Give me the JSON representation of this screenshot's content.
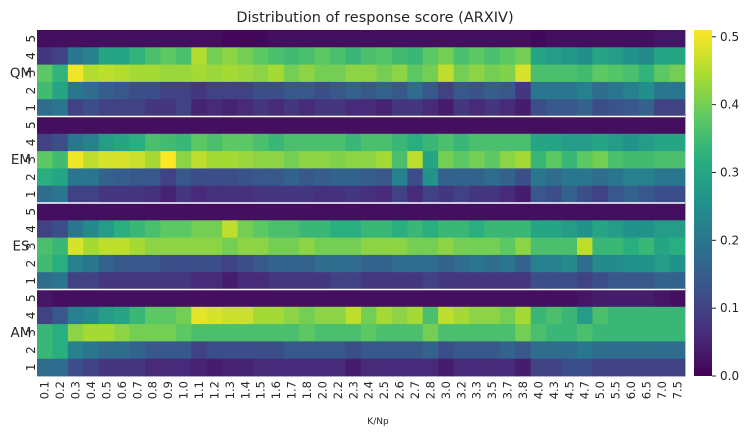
{
  "chart_data": {
    "type": "heatmap",
    "title": "Distribution of response score (ARXIV)",
    "xlabel": "K/Np",
    "ylabel": "",
    "x_categories": [
      "0.1",
      "0.2",
      "0.3",
      "0.4",
      "0.5",
      "0.6",
      "0.7",
      "0.8",
      "0.9",
      "1.0",
      "1.1",
      "1.2",
      "1.3",
      "1.4",
      "1.5",
      "1.6",
      "1.7",
      "1.8",
      "2.0",
      "2.2",
      "2.3",
      "2.4",
      "2.5",
      "2.6",
      "2.7",
      "2.8",
      "3.0",
      "3.2",
      "3.3",
      "3.5",
      "3.7",
      "3.8",
      "4.0",
      "4.3",
      "4.5",
      "4.7",
      "5.0",
      "5.5",
      "6.0",
      "6.5",
      "7.0",
      "7.5"
    ],
    "groups": [
      "QM",
      "EM",
      "ES",
      "AM"
    ],
    "scores": [
      "5",
      "4",
      "3",
      "2",
      "1"
    ],
    "colorbar": {
      "vmin": 0.0,
      "vmax": 0.51,
      "ticks": [
        "0.0",
        "0.1",
        "0.2",
        "0.3",
        "0.4",
        "0.5"
      ],
      "colormap": "viridis"
    },
    "rows": [
      {
        "group": "QM",
        "score": "5",
        "values": [
          0.02,
          0.02,
          0.02,
          0.02,
          0.02,
          0.02,
          0.02,
          0.02,
          0.02,
          0.02,
          0.02,
          0.02,
          0.01,
          0.01,
          0.01,
          0.02,
          0.02,
          0.02,
          0.02,
          0.02,
          0.02,
          0.02,
          0.02,
          0.02,
          0.02,
          0.02,
          0.02,
          0.02,
          0.02,
          0.02,
          0.02,
          0.02,
          0.01,
          0.02,
          0.02,
          0.02,
          0.02,
          0.02,
          0.02,
          0.02,
          0.03,
          0.03
        ]
      },
      {
        "group": "QM",
        "score": "4",
        "values": [
          0.08,
          0.1,
          0.2,
          0.22,
          0.3,
          0.3,
          0.33,
          0.36,
          0.38,
          0.36,
          0.45,
          0.4,
          0.42,
          0.4,
          0.38,
          0.36,
          0.35,
          0.36,
          0.38,
          0.36,
          0.34,
          0.36,
          0.37,
          0.35,
          0.34,
          0.38,
          0.4,
          0.36,
          0.38,
          0.36,
          0.38,
          0.4,
          0.3,
          0.28,
          0.27,
          0.25,
          0.3,
          0.28,
          0.26,
          0.24,
          0.3,
          0.3
        ]
      },
      {
        "group": "QM",
        "score": "3",
        "values": [
          0.38,
          0.33,
          0.5,
          0.45,
          0.46,
          0.45,
          0.44,
          0.44,
          0.43,
          0.43,
          0.44,
          0.43,
          0.44,
          0.43,
          0.42,
          0.44,
          0.4,
          0.42,
          0.4,
          0.4,
          0.42,
          0.42,
          0.4,
          0.42,
          0.38,
          0.4,
          0.46,
          0.4,
          0.42,
          0.4,
          0.41,
          0.48,
          0.36,
          0.36,
          0.36,
          0.35,
          0.38,
          0.37,
          0.36,
          0.33,
          0.38,
          0.4
        ]
      },
      {
        "group": "QM",
        "score": "2",
        "values": [
          0.35,
          0.3,
          0.2,
          0.18,
          0.15,
          0.14,
          0.12,
          0.12,
          0.1,
          0.1,
          0.08,
          0.1,
          0.1,
          0.1,
          0.12,
          0.12,
          0.14,
          0.14,
          0.12,
          0.14,
          0.16,
          0.14,
          0.16,
          0.14,
          0.18,
          0.14,
          0.1,
          0.14,
          0.13,
          0.15,
          0.14,
          0.08,
          0.2,
          0.2,
          0.2,
          0.22,
          0.18,
          0.2,
          0.22,
          0.25,
          0.2,
          0.2
        ]
      },
      {
        "group": "QM",
        "score": "1",
        "values": [
          0.18,
          0.2,
          0.1,
          0.12,
          0.1,
          0.1,
          0.1,
          0.08,
          0.08,
          0.1,
          0.05,
          0.06,
          0.05,
          0.06,
          0.08,
          0.06,
          0.08,
          0.06,
          0.08,
          0.08,
          0.06,
          0.06,
          0.05,
          0.08,
          0.08,
          0.06,
          0.04,
          0.08,
          0.06,
          0.08,
          0.06,
          0.04,
          0.12,
          0.14,
          0.14,
          0.16,
          0.12,
          0.13,
          0.14,
          0.16,
          0.1,
          0.1
        ]
      },
      {
        "group": "EM",
        "score": "5",
        "values": [
          0.02,
          0.02,
          0.02,
          0.02,
          0.02,
          0.02,
          0.02,
          0.02,
          0.02,
          0.02,
          0.02,
          0.02,
          0.02,
          0.02,
          0.02,
          0.02,
          0.02,
          0.02,
          0.02,
          0.02,
          0.02,
          0.02,
          0.02,
          0.02,
          0.02,
          0.02,
          0.02,
          0.02,
          0.02,
          0.02,
          0.02,
          0.02,
          0.02,
          0.02,
          0.02,
          0.02,
          0.02,
          0.02,
          0.02,
          0.02,
          0.02,
          0.02
        ]
      },
      {
        "group": "EM",
        "score": "4",
        "values": [
          0.1,
          0.12,
          0.2,
          0.22,
          0.28,
          0.3,
          0.32,
          0.36,
          0.35,
          0.34,
          0.38,
          0.36,
          0.38,
          0.38,
          0.36,
          0.34,
          0.36,
          0.36,
          0.36,
          0.36,
          0.34,
          0.36,
          0.36,
          0.34,
          0.32,
          0.34,
          0.36,
          0.34,
          0.36,
          0.36,
          0.36,
          0.36,
          0.3,
          0.3,
          0.28,
          0.28,
          0.3,
          0.28,
          0.26,
          0.28,
          0.3,
          0.3
        ]
      },
      {
        "group": "EM",
        "score": "3",
        "values": [
          0.38,
          0.35,
          0.5,
          0.46,
          0.48,
          0.48,
          0.47,
          0.44,
          0.51,
          0.42,
          0.46,
          0.44,
          0.44,
          0.43,
          0.42,
          0.42,
          0.4,
          0.42,
          0.42,
          0.41,
          0.42,
          0.42,
          0.44,
          0.36,
          0.46,
          0.3,
          0.4,
          0.38,
          0.4,
          0.38,
          0.42,
          0.44,
          0.34,
          0.38,
          0.34,
          0.38,
          0.4,
          0.36,
          0.35,
          0.35,
          0.36,
          0.36
        ]
      },
      {
        "group": "EM",
        "score": "2",
        "values": [
          0.32,
          0.3,
          0.2,
          0.2,
          0.16,
          0.15,
          0.14,
          0.14,
          0.1,
          0.14,
          0.12,
          0.12,
          0.12,
          0.13,
          0.14,
          0.14,
          0.16,
          0.14,
          0.15,
          0.16,
          0.16,
          0.15,
          0.14,
          0.22,
          0.12,
          0.26,
          0.16,
          0.16,
          0.16,
          0.18,
          0.16,
          0.12,
          0.2,
          0.18,
          0.2,
          0.2,
          0.18,
          0.2,
          0.22,
          0.22,
          0.2,
          0.2
        ]
      },
      {
        "group": "EM",
        "score": "1",
        "values": [
          0.18,
          0.2,
          0.1,
          0.1,
          0.08,
          0.08,
          0.08,
          0.07,
          0.05,
          0.08,
          0.06,
          0.07,
          0.07,
          0.07,
          0.08,
          0.08,
          0.08,
          0.08,
          0.07,
          0.07,
          0.08,
          0.07,
          0.06,
          0.1,
          0.06,
          0.1,
          0.08,
          0.1,
          0.08,
          0.08,
          0.06,
          0.04,
          0.14,
          0.12,
          0.16,
          0.12,
          0.1,
          0.14,
          0.16,
          0.14,
          0.12,
          0.12
        ]
      },
      {
        "group": "ES",
        "score": "5",
        "values": [
          0.02,
          0.02,
          0.02,
          0.02,
          0.02,
          0.02,
          0.02,
          0.02,
          0.02,
          0.02,
          0.02,
          0.02,
          0.02,
          0.02,
          0.02,
          0.02,
          0.02,
          0.02,
          0.02,
          0.02,
          0.02,
          0.02,
          0.02,
          0.02,
          0.02,
          0.02,
          0.02,
          0.02,
          0.02,
          0.02,
          0.02,
          0.02,
          0.02,
          0.02,
          0.02,
          0.02,
          0.02,
          0.02,
          0.02,
          0.02,
          0.02,
          0.02
        ]
      },
      {
        "group": "ES",
        "score": "4",
        "values": [
          0.1,
          0.12,
          0.2,
          0.24,
          0.28,
          0.32,
          0.34,
          0.36,
          0.38,
          0.38,
          0.4,
          0.4,
          0.46,
          0.4,
          0.38,
          0.36,
          0.36,
          0.34,
          0.34,
          0.32,
          0.32,
          0.34,
          0.34,
          0.32,
          0.34,
          0.32,
          0.34,
          0.34,
          0.32,
          0.34,
          0.34,
          0.34,
          0.3,
          0.3,
          0.28,
          0.26,
          0.3,
          0.28,
          0.26,
          0.26,
          0.28,
          0.28
        ]
      },
      {
        "group": "ES",
        "score": "3",
        "values": [
          0.36,
          0.34,
          0.48,
          0.44,
          0.46,
          0.46,
          0.44,
          0.42,
          0.42,
          0.42,
          0.42,
          0.42,
          0.4,
          0.42,
          0.42,
          0.4,
          0.4,
          0.42,
          0.4,
          0.4,
          0.4,
          0.42,
          0.42,
          0.42,
          0.4,
          0.4,
          0.42,
          0.4,
          0.4,
          0.4,
          0.38,
          0.42,
          0.36,
          0.36,
          0.36,
          0.46,
          0.34,
          0.34,
          0.32,
          0.34,
          0.3,
          0.32
        ]
      },
      {
        "group": "ES",
        "score": "2",
        "values": [
          0.35,
          0.32,
          0.22,
          0.2,
          0.16,
          0.14,
          0.14,
          0.14,
          0.12,
          0.12,
          0.12,
          0.12,
          0.1,
          0.12,
          0.14,
          0.16,
          0.16,
          0.16,
          0.18,
          0.18,
          0.18,
          0.16,
          0.16,
          0.18,
          0.18,
          0.18,
          0.16,
          0.18,
          0.2,
          0.18,
          0.2,
          0.16,
          0.22,
          0.22,
          0.24,
          0.18,
          0.24,
          0.24,
          0.26,
          0.26,
          0.28,
          0.26
        ]
      },
      {
        "group": "ES",
        "score": "1",
        "values": [
          0.18,
          0.2,
          0.1,
          0.1,
          0.08,
          0.08,
          0.08,
          0.08,
          0.08,
          0.08,
          0.06,
          0.06,
          0.04,
          0.06,
          0.06,
          0.08,
          0.08,
          0.08,
          0.08,
          0.1,
          0.1,
          0.08,
          0.08,
          0.08,
          0.08,
          0.1,
          0.08,
          0.08,
          0.08,
          0.08,
          0.08,
          0.08,
          0.12,
          0.12,
          0.12,
          0.1,
          0.12,
          0.14,
          0.14,
          0.14,
          0.16,
          0.16
        ]
      },
      {
        "group": "AM",
        "score": "5",
        "values": [
          0.03,
          0.02,
          0.02,
          0.02,
          0.02,
          0.02,
          0.02,
          0.02,
          0.02,
          0.02,
          0.02,
          0.02,
          0.02,
          0.02,
          0.02,
          0.02,
          0.02,
          0.02,
          0.02,
          0.02,
          0.02,
          0.02,
          0.02,
          0.02,
          0.02,
          0.02,
          0.02,
          0.02,
          0.02,
          0.02,
          0.02,
          0.02,
          0.02,
          0.02,
          0.02,
          0.03,
          0.04,
          0.04,
          0.04,
          0.04,
          0.03,
          0.02
        ]
      },
      {
        "group": "AM",
        "score": "4",
        "values": [
          0.1,
          0.14,
          0.22,
          0.24,
          0.28,
          0.3,
          0.34,
          0.38,
          0.38,
          0.4,
          0.49,
          0.48,
          0.47,
          0.47,
          0.44,
          0.44,
          0.42,
          0.4,
          0.42,
          0.42,
          0.46,
          0.4,
          0.44,
          0.42,
          0.44,
          0.36,
          0.46,
          0.44,
          0.42,
          0.42,
          0.4,
          0.44,
          0.34,
          0.36,
          0.34,
          0.28,
          0.36,
          0.34,
          0.34,
          0.34,
          0.34,
          0.34
        ]
      },
      {
        "group": "AM",
        "score": "3",
        "values": [
          0.34,
          0.32,
          0.42,
          0.44,
          0.44,
          0.42,
          0.4,
          0.4,
          0.4,
          0.38,
          0.36,
          0.36,
          0.36,
          0.36,
          0.36,
          0.36,
          0.36,
          0.38,
          0.36,
          0.36,
          0.36,
          0.38,
          0.36,
          0.36,
          0.36,
          0.4,
          0.36,
          0.36,
          0.36,
          0.36,
          0.36,
          0.4,
          0.36,
          0.34,
          0.34,
          0.36,
          0.34,
          0.34,
          0.34,
          0.34,
          0.34,
          0.34
        ]
      },
      {
        "group": "AM",
        "score": "2",
        "values": [
          0.34,
          0.32,
          0.22,
          0.2,
          0.18,
          0.18,
          0.16,
          0.14,
          0.14,
          0.14,
          0.1,
          0.12,
          0.12,
          0.12,
          0.12,
          0.12,
          0.14,
          0.14,
          0.14,
          0.14,
          0.12,
          0.14,
          0.14,
          0.14,
          0.14,
          0.16,
          0.12,
          0.14,
          0.14,
          0.14,
          0.16,
          0.14,
          0.18,
          0.18,
          0.18,
          0.2,
          0.18,
          0.18,
          0.18,
          0.18,
          0.18,
          0.18
        ]
      },
      {
        "group": "AM",
        "score": "1",
        "values": [
          0.18,
          0.18,
          0.12,
          0.1,
          0.08,
          0.08,
          0.08,
          0.06,
          0.06,
          0.06,
          0.05,
          0.04,
          0.05,
          0.05,
          0.06,
          0.06,
          0.06,
          0.06,
          0.06,
          0.06,
          0.04,
          0.06,
          0.06,
          0.06,
          0.06,
          0.06,
          0.04,
          0.06,
          0.06,
          0.06,
          0.06,
          0.04,
          0.1,
          0.1,
          0.12,
          0.12,
          0.1,
          0.1,
          0.1,
          0.1,
          0.1,
          0.1
        ]
      }
    ]
  }
}
